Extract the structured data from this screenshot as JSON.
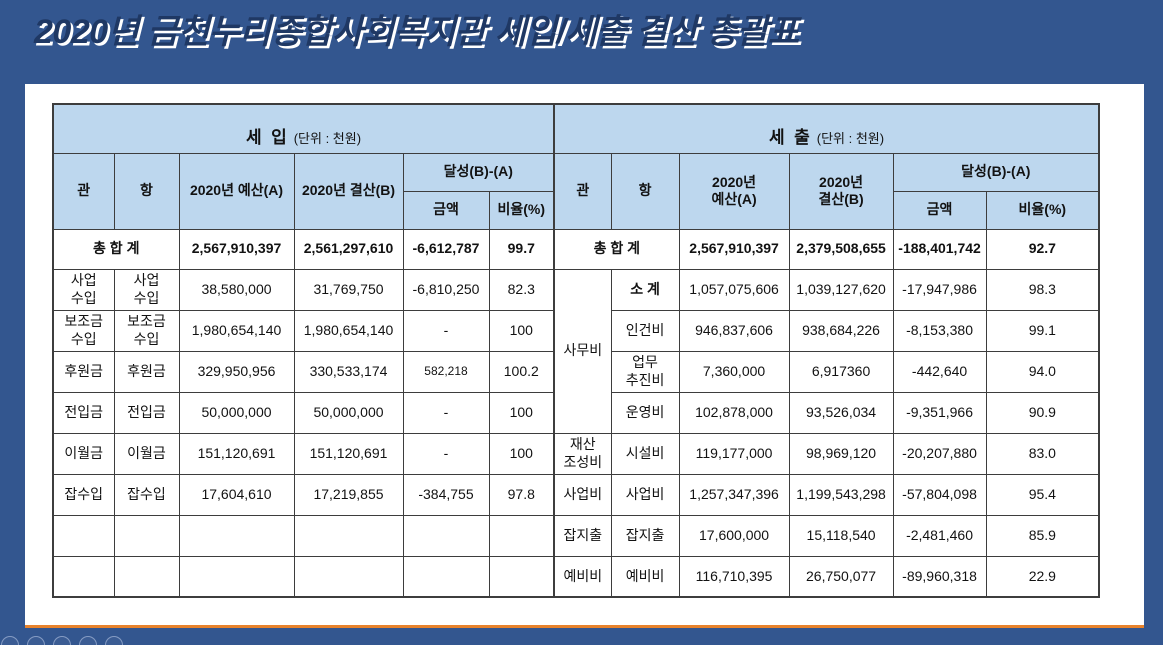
{
  "title": "2020년 금천누리종합사회복지관 세입/세출 결산 총괄표",
  "table": {
    "revenue": {
      "title": "세  입",
      "unit": "(단위 : 천원)",
      "col_gwan": "관",
      "col_hang": "항",
      "col_budget": "2020년 예산(A)",
      "col_settlement": "2020년 결산(B)",
      "col_achievement": "달성(B)-(A)",
      "col_amount": "금액",
      "col_ratio": "비율(%)",
      "total": {
        "label": "총 합 계",
        "budget": "2,567,910,397",
        "settlement": "2,561,297,610",
        "amount": "-6,612,787",
        "ratio": "99.7"
      },
      "rows": [
        {
          "gwan": "사업\n수입",
          "hang": "사업\n수입",
          "budget": "38,580,000",
          "settlement": "31,769,750",
          "amount": "-6,810,250",
          "ratio": "82.3"
        },
        {
          "gwan": "보조금\n수입",
          "hang": "보조금\n수입",
          "budget": "1,980,654,140",
          "settlement": "1,980,654,140",
          "amount": "-",
          "ratio": "100"
        },
        {
          "gwan": "후원금",
          "hang": "후원금",
          "budget": "329,950,956",
          "settlement": "330,533,174",
          "amount": "582,218",
          "amount_small": true,
          "ratio": "100.2"
        },
        {
          "gwan": "전입금",
          "hang": "전입금",
          "budget": "50,000,000",
          "settlement": "50,000,000",
          "amount": "-",
          "ratio": "100"
        },
        {
          "gwan": "이월금",
          "hang": "이월금",
          "budget": "151,120,691",
          "settlement": "151,120,691",
          "amount": "-",
          "ratio": "100"
        },
        {
          "gwan": "잡수입",
          "hang": "잡수입",
          "budget": "17,604,610",
          "settlement": "17,219,855",
          "amount": "-384,755",
          "ratio": "97.8"
        },
        {
          "gwan": "",
          "hang": "",
          "budget": "",
          "settlement": "",
          "amount": "",
          "ratio": ""
        },
        {
          "gwan": "",
          "hang": "",
          "budget": "",
          "settlement": "",
          "amount": "",
          "ratio": ""
        }
      ]
    },
    "expenditure": {
      "title": "세  출",
      "unit": "(단위 : 천원)",
      "col_gwan": "관",
      "col_hang": "항",
      "col_budget": "2020년\n예산(A)",
      "col_settlement": "2020년\n결산(B)",
      "col_achievement": "달성(B)-(A)",
      "col_amount": "금액",
      "col_ratio": "비율(%)",
      "total": {
        "label": "총 합 계",
        "budget": "2,567,910,397",
        "settlement": "2,379,508,655",
        "amount": "-188,401,742",
        "ratio": "92.7"
      },
      "rows": [
        {
          "gwan": "사무비",
          "gwan_span": 4,
          "hang": "소 계",
          "hang_bold": true,
          "budget": "1,057,075,606",
          "settlement": "1,039,127,620",
          "amount": "-17,947,986",
          "ratio": "98.3"
        },
        {
          "hang": "인건비",
          "budget": "946,837,606",
          "settlement": "938,684,226",
          "amount": "-8,153,380",
          "ratio": "99.1"
        },
        {
          "hang": "업무\n추진비",
          "budget": "7,360,000",
          "settlement": "6,917360",
          "amount": "-442,640",
          "ratio": "94.0"
        },
        {
          "hang": "운영비",
          "budget": "102,878,000",
          "settlement": "93,526,034",
          "amount": "-9,351,966",
          "ratio": "90.9"
        },
        {
          "gwan": "재산\n조성비",
          "gwan_span": 1,
          "hang": "시설비",
          "budget": "119,177,000",
          "settlement": "98,969,120",
          "amount": "-20,207,880",
          "ratio": "83.0"
        },
        {
          "gwan": "사업비",
          "gwan_span": 1,
          "hang": "사업비",
          "budget": "1,257,347,396",
          "settlement": "1,199,543,298",
          "amount": "-57,804,098",
          "ratio": "95.4"
        },
        {
          "gwan": "잡지출",
          "gwan_span": 1,
          "hang": "잡지출",
          "budget": "17,600,000",
          "settlement": "15,118,540",
          "amount": "-2,481,460",
          "ratio": "85.9"
        },
        {
          "gwan": "예비비",
          "gwan_span": 1,
          "hang": "예비비",
          "budget": "116,710,395",
          "settlement": "26,750,077",
          "amount": "-89,960,318",
          "ratio": "22.9"
        }
      ]
    }
  },
  "footer": {
    "controls": [
      {
        "name": "presenter-control-icon"
      },
      {
        "name": "presenter-pen-icon"
      },
      {
        "name": "presenter-grid-icon"
      },
      {
        "name": "presenter-record-icon"
      },
      {
        "name": "presenter-control-icon"
      }
    ]
  }
}
